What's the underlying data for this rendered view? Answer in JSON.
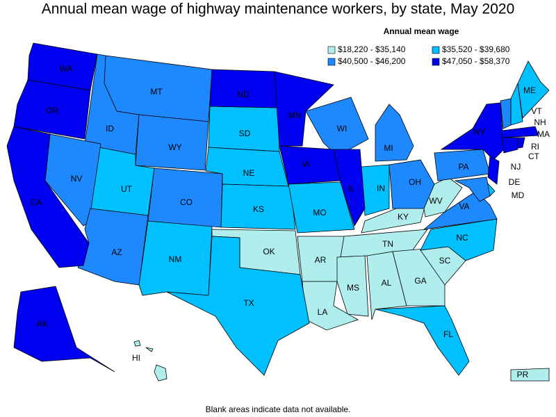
{
  "title": "Annual mean wage of highway maintenance workers, by state, May 2020",
  "legend": {
    "title": "Annual mean wage",
    "bins": [
      {
        "label": "$18,220 - $35,140",
        "color": "#b0eeee",
        "states": [
          "OK",
          "AR",
          "TN",
          "KY",
          "WV",
          "MS",
          "AL",
          "GA",
          "SC",
          "LA",
          "HI",
          "PR"
        ]
      },
      {
        "label": "$35,520 - $39,680",
        "color": "#00c0ff",
        "states": [
          "SD",
          "NE",
          "KS",
          "UT",
          "NM",
          "TX",
          "MO",
          "IN",
          "NC",
          "FL",
          "ME",
          "NH",
          "DE"
        ]
      },
      {
        "label": "$40,500 - $46,200",
        "color": "#1e88ff",
        "states": [
          "MT",
          "ID",
          "WY",
          "NV",
          "CO",
          "AZ",
          "WI",
          "MI",
          "OH",
          "PA",
          "VA",
          "VT",
          "MD"
        ]
      },
      {
        "label": "$47,050 - $58,370",
        "color": "#0000f0",
        "states": [
          "WA",
          "OR",
          "CA",
          "AK",
          "ND",
          "MN",
          "IA",
          "IL",
          "NY",
          "MA",
          "CT",
          "RI",
          "NJ"
        ]
      }
    ]
  },
  "footnote": "Blank areas indicate data not available."
}
